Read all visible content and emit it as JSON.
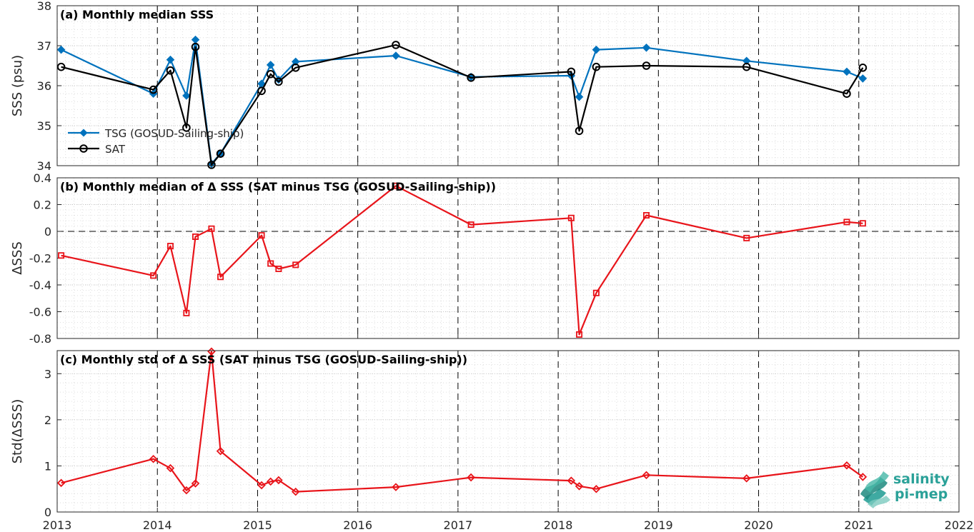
{
  "chart_data": [
    {
      "type": "line",
      "title": "(a) Monthly median SSS",
      "ylabel": "SSS (psu)",
      "ylim": [
        34,
        38
      ],
      "yticks": [
        34,
        35,
        36,
        37,
        38
      ],
      "xlim": [
        2013,
        2022
      ],
      "xticks": [
        2013,
        2014,
        2015,
        2016,
        2017,
        2018,
        2019,
        2020,
        2021,
        2022
      ],
      "grid": true,
      "legend_placement": "lower-left",
      "series": [
        {
          "name": "TSG (GOSUD-Sailing-ship)",
          "color": "#0072BD",
          "marker": "diamond",
          "x": [
            2013.04,
            2013.96,
            2014.13,
            2014.29,
            2014.38,
            2014.54,
            2014.63,
            2015.04,
            2015.13,
            2015.21,
            2015.38,
            2016.38,
            2017.13,
            2018.13,
            2018.21,
            2018.38,
            2018.88,
            2019.88,
            2020.88,
            2021.04
          ],
          "y": [
            36.9,
            35.8,
            36.65,
            35.75,
            37.15,
            34.05,
            34.3,
            36.05,
            36.52,
            36.15,
            36.6,
            36.75,
            36.22,
            36.25,
            35.72,
            36.9,
            36.95,
            36.62,
            36.35,
            36.18
          ]
        },
        {
          "name": "SAT",
          "color": "#000000",
          "marker": "circle",
          "x": [
            2013.04,
            2013.96,
            2014.13,
            2014.29,
            2014.38,
            2014.54,
            2014.63,
            2015.04,
            2015.13,
            2015.21,
            2015.38,
            2016.38,
            2017.13,
            2018.13,
            2018.21,
            2018.38,
            2018.88,
            2019.88,
            2020.88,
            2021.04
          ],
          "y": [
            36.47,
            35.9,
            36.38,
            34.95,
            36.97,
            34.02,
            34.3,
            35.87,
            36.29,
            36.1,
            36.45,
            37.02,
            36.2,
            36.35,
            34.87,
            36.47,
            36.5,
            36.47,
            35.8,
            36.45
          ]
        }
      ]
    },
    {
      "type": "line",
      "title": "(b) Monthly median of Δ SSS (SAT minus TSG (GOSUD-Sailing-ship))",
      "ylabel": "ΔSSS",
      "ylim": [
        -0.8,
        0.4
      ],
      "yticks": [
        -0.8,
        -0.6,
        -0.4,
        -0.2,
        0,
        0.2,
        0.4
      ],
      "xlim": [
        2013,
        2022
      ],
      "grid": true,
      "zero_line": true,
      "series": [
        {
          "color": "#E8141A",
          "marker": "square",
          "x": [
            2013.04,
            2013.96,
            2014.13,
            2014.29,
            2014.38,
            2014.54,
            2014.63,
            2015.04,
            2015.13,
            2015.21,
            2015.38,
            2016.38,
            2017.13,
            2018.13,
            2018.21,
            2018.38,
            2018.88,
            2019.88,
            2020.88,
            2021.04
          ],
          "y": [
            -0.18,
            -0.33,
            -0.11,
            -0.61,
            -0.04,
            0.02,
            -0.34,
            -0.03,
            -0.24,
            -0.28,
            -0.25,
            0.34,
            0.05,
            0.1,
            -0.77,
            -0.46,
            0.12,
            -0.05,
            0.07,
            0.06
          ]
        }
      ]
    },
    {
      "type": "line",
      "title": "(c) Monthly std of Δ SSS (SAT minus TSG (GOSUD-Sailing-ship))",
      "ylabel": "Std(ΔSSS)",
      "ylim": [
        0,
        3.5
      ],
      "yticks": [
        0,
        1,
        2,
        3
      ],
      "xlim": [
        2013,
        2022
      ],
      "xticks": [
        2013,
        2014,
        2015,
        2016,
        2017,
        2018,
        2019,
        2020,
        2021,
        2022
      ],
      "grid": true,
      "series": [
        {
          "color": "#E8141A",
          "marker": "diamond",
          "x": [
            2013.04,
            2013.96,
            2014.13,
            2014.29,
            2014.38,
            2014.54,
            2014.63,
            2015.04,
            2015.13,
            2015.21,
            2015.38,
            2016.38,
            2017.13,
            2018.13,
            2018.21,
            2018.38,
            2018.88,
            2019.88,
            2020.88,
            2021.04
          ],
          "y": [
            0.63,
            1.15,
            0.95,
            0.47,
            0.62,
            3.48,
            1.32,
            0.58,
            0.66,
            0.69,
            0.44,
            0.54,
            0.75,
            0.68,
            0.56,
            0.5,
            0.8,
            0.73,
            1.01,
            0.76
          ]
        }
      ]
    }
  ],
  "logo": {
    "line1": "salinity",
    "line2": "pi-mep"
  }
}
